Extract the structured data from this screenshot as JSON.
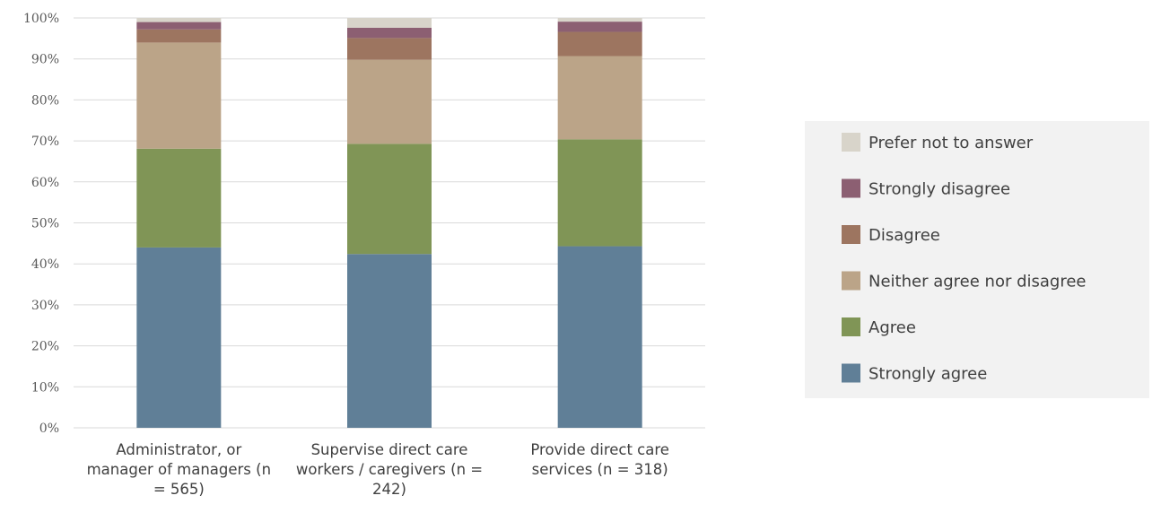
{
  "chart_data": {
    "type": "bar",
    "stacked": true,
    "title": "",
    "xlabel": "",
    "ylabel": "",
    "ylim": [
      0,
      100
    ],
    "y_ticks": [
      "0%",
      "10%",
      "20%",
      "30%",
      "40%",
      "50%",
      "60%",
      "70%",
      "80%",
      "90%",
      "100%"
    ],
    "grid": true,
    "legend_position": "right",
    "categories": [
      [
        "Administrator, or",
        "manager of managers (n",
        "= 565)"
      ],
      [
        "Supervise direct care",
        "workers / caregivers (n =",
        "242)"
      ],
      [
        "Provide direct care",
        "services (n = 318)"
      ]
    ],
    "series": [
      {
        "name": "Strongly agree",
        "color": "#607f97",
        "values": [
          44.0,
          42.4,
          44.3
        ]
      },
      {
        "name": "Agree",
        "color": "#809556",
        "values": [
          24.1,
          26.9,
          26.1
        ]
      },
      {
        "name": "Neither agree nor disagree",
        "color": "#bba488",
        "values": [
          25.9,
          20.5,
          20.3
        ]
      },
      {
        "name": "Disagree",
        "color": "#9d7560",
        "values": [
          3.2,
          5.3,
          5.9
        ]
      },
      {
        "name": "Strongly disagree",
        "color": "#8c5f72",
        "values": [
          1.8,
          2.5,
          2.5
        ]
      },
      {
        "name": "Prefer not to answer",
        "color": "#d8d4ca",
        "values": [
          1.0,
          2.4,
          0.9
        ]
      }
    ],
    "legend_order": [
      "Prefer not to answer",
      "Strongly disagree",
      "Disagree",
      "Neither agree nor disagree",
      "Agree",
      "Strongly agree"
    ],
    "colors": {
      "grid": "#d9d9d9",
      "legend_background": "#f2f2f2"
    }
  }
}
